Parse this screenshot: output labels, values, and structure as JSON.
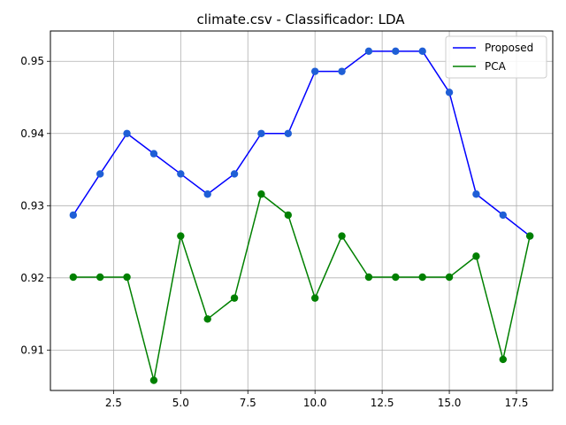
{
  "chart_data": {
    "type": "line",
    "title": "climate.csv - Classificador: LDA",
    "xlabel": "",
    "ylabel": "",
    "xlim": [
      0.15,
      18.85
    ],
    "ylim": [
      0.9044,
      0.9542
    ],
    "xticks": [
      2.5,
      5.0,
      7.5,
      10.0,
      12.5,
      15.0,
      17.5
    ],
    "xtick_labels": [
      "2.5",
      "5.0",
      "7.5",
      "10.0",
      "12.5",
      "15.0",
      "17.5"
    ],
    "yticks": [
      0.91,
      0.92,
      0.93,
      0.94,
      0.95
    ],
    "ytick_labels": [
      "0.91",
      "0.92",
      "0.93",
      "0.94",
      "0.95"
    ],
    "grid": true,
    "legend_position": "top-right",
    "x": [
      1,
      2,
      3,
      4,
      5,
      6,
      7,
      8,
      9,
      10,
      11,
      12,
      13,
      14,
      15,
      16,
      17,
      18
    ],
    "series": [
      {
        "name": "Proposed",
        "color": "#0000ff",
        "marker_color": "#1f5fd6",
        "values": [
          0.9287,
          0.9344,
          0.94,
          0.9372,
          0.9344,
          0.9316,
          0.9344,
          0.94,
          0.94,
          0.9486,
          0.9486,
          0.9514,
          0.9514,
          0.9514,
          0.9457,
          0.9316,
          0.9287,
          0.9258
        ]
      },
      {
        "name": "PCA",
        "color": "#008000",
        "marker_color": "#008000",
        "values": [
          0.9201,
          0.9201,
          0.9201,
          0.9058,
          0.9258,
          0.9143,
          0.9172,
          0.9316,
          0.9287,
          0.9172,
          0.9258,
          0.9201,
          0.9201,
          0.9201,
          0.9201,
          0.923,
          0.9087,
          0.9258
        ]
      }
    ]
  }
}
